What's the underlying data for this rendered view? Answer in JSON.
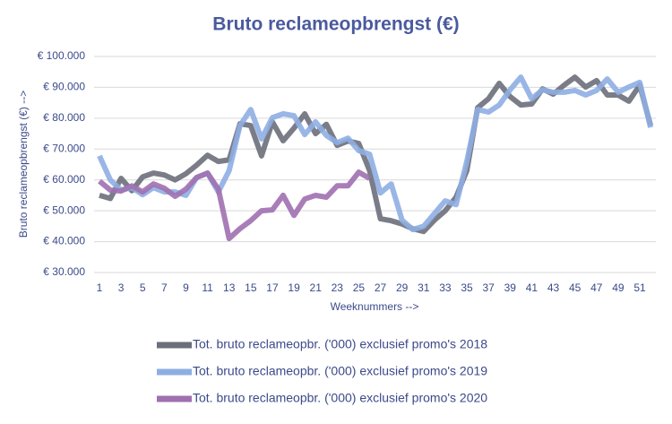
{
  "chart_data": {
    "type": "line",
    "title": "Bruto reclameopbrengst (€)",
    "x_label": "Weeknummers -->",
    "y_label": "Bruto reclameopbrengst (€) -->",
    "categories": [
      "1",
      null,
      "3",
      null,
      "5",
      null,
      "7",
      null,
      "9",
      null,
      "11",
      null,
      "13",
      null,
      "15",
      null,
      "17",
      null,
      "19",
      null,
      "21",
      null,
      "23",
      null,
      "25",
      null,
      "27",
      null,
      "29",
      null,
      "31",
      null,
      "33",
      null,
      "35",
      null,
      "37",
      null,
      "39",
      null,
      "41",
      null,
      "43",
      null,
      "45",
      null,
      "47",
      null,
      "49",
      null,
      "51",
      null
    ],
    "ylim": [
      30000,
      100000
    ],
    "yticks": [
      {
        "value": 30000,
        "label": "€ 30.000"
      },
      {
        "value": 40000,
        "label": "€ 40.000"
      },
      {
        "value": 50000,
        "label": "€ 50.000"
      },
      {
        "value": 60000,
        "label": "€ 60.000"
      },
      {
        "value": 70000,
        "label": "€ 70.000"
      },
      {
        "value": 80000,
        "label": "€ 80.000"
      },
      {
        "value": 90000,
        "label": "€ 90.000"
      },
      {
        "value": 100000,
        "label": "€ 100.000"
      }
    ],
    "grid": true,
    "legend": "bottom",
    "series": [
      {
        "name": "Tot. bruto reclameopbr. ('000) exclusief promo's 2018",
        "color": "#6b6f7a",
        "values": [
          55000,
          54000,
          60500,
          56500,
          61000,
          62200,
          61600,
          60000,
          62000,
          64800,
          68000,
          66000,
          66500,
          78200,
          77600,
          67800,
          78800,
          72700,
          76800,
          81400,
          75000,
          78000,
          71200,
          72600,
          71800,
          63000,
          47400,
          46800,
          45700,
          44200,
          43300,
          47000,
          50000,
          54400,
          63000,
          83400,
          86300,
          91300,
          87000,
          84300,
          84600,
          89500,
          87800,
          90700,
          93300,
          90100,
          92200,
          87500,
          87500,
          85500,
          90700,
          77600
        ]
      },
      {
        "name": "Tot. bruto reclameopbr. ('000) exclusief promo's 2019",
        "color": "#8eaee3",
        "values": [
          67800,
          60000,
          56700,
          57500,
          55200,
          57500,
          56100,
          56100,
          55000,
          60800,
          62200,
          56100,
          63000,
          77600,
          82800,
          73300,
          80200,
          81400,
          80800,
          74700,
          78800,
          74400,
          72100,
          73500,
          69500,
          68300,
          55800,
          58700,
          47000,
          43900,
          45000,
          49100,
          53200,
          52000,
          66000,
          82800,
          82000,
          84300,
          89200,
          93300,
          86300,
          89200,
          88400,
          88400,
          89000,
          87500,
          89000,
          92700,
          88400,
          90100,
          91600,
          77000
        ]
      },
      {
        "name": "Tot. bruto reclameopbr. ('000) exclusief promo's 2020",
        "color": "#a070b0",
        "values": [
          59600,
          56700,
          56400,
          58100,
          56100,
          58700,
          57300,
          54700,
          57000,
          60800,
          62200,
          57000,
          41000,
          44200,
          46800,
          50000,
          50300,
          55000,
          48500,
          53800,
          55000,
          54400,
          58100,
          58100,
          62500,
          60500,
          null,
          null,
          null,
          null,
          null,
          null,
          null,
          null,
          null,
          null,
          null,
          null,
          null,
          null,
          null,
          null,
          null,
          null,
          null,
          null,
          null,
          null,
          null,
          null,
          null,
          null
        ]
      }
    ]
  }
}
